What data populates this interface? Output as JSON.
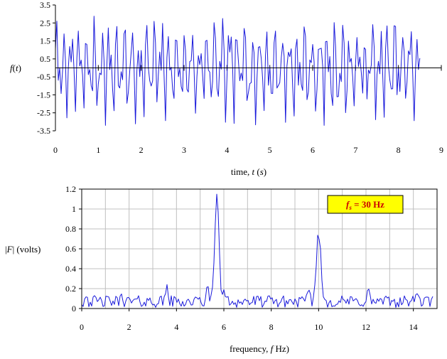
{
  "colors": {
    "series": "#1a1adb",
    "frame": "#000000",
    "grid": "#c0c0c0",
    "annotation_bg": "#ffff00",
    "annotation_text": "#cc0000"
  },
  "chart_data": [
    {
      "type": "line",
      "xlabel": "time, t (s)",
      "ylabel": "f(t)",
      "xlim": [
        0,
        9
      ],
      "ylim": [
        -3.5,
        3.5
      ],
      "xticks": [
        "0",
        "1",
        "2",
        "3",
        "4",
        "5",
        "6",
        "7",
        "8",
        "9"
      ],
      "yticks": [
        "3.5",
        "2.5",
        "1.5",
        "0.5",
        "-0.5",
        "-1.5",
        "-2.5",
        "-3.5"
      ],
      "grid": false,
      "sampling_rate_hz": 30,
      "x_end": 8.5,
      "series": [
        {
          "components": [
            {
              "amplitude": 1.5,
              "frequency_hz": 5.7
            },
            {
              "amplitude": 1.1,
              "frequency_hz": 10
            }
          ],
          "noise": "random",
          "y_range": [
            -3.2,
            3.3
          ]
        }
      ]
    },
    {
      "type": "line",
      "xlabel": "frequency, f Hz)",
      "ylabel": "|F| (volts)",
      "xlim": [
        0,
        15
      ],
      "ylim": [
        0,
        1.2
      ],
      "xticks": [
        "0",
        "2",
        "4",
        "6",
        "8",
        "10",
        "12",
        "14"
      ],
      "yticks": [
        "1.2",
        "1",
        "0.8",
        "0.6",
        "0.4",
        "0.2",
        "0"
      ],
      "grid": true,
      "annotation": {
        "text": "fs = 30 Hz",
        "symbol": "f",
        "subscript": "s",
        "rest": " = 30  Hz",
        "placement": "top-right"
      },
      "series": [
        {
          "peaks": [
            {
              "f": 5.7,
              "value": 1.1
            },
            {
              "f": 10.0,
              "value": 0.76
            },
            {
              "f": 3.6,
              "value": 0.25
            },
            {
              "f": 5.3,
              "value": 0.2
            },
            {
              "f": 6.0,
              "value": 0.2
            },
            {
              "f": 12.1,
              "value": 0.18
            },
            {
              "f": 14.1,
              "value": 0.17
            },
            {
              "f": 0.2,
              "value": 0.15
            },
            {
              "f": 1.7,
              "value": 0.15
            },
            {
              "f": 9.6,
              "value": 0.16
            }
          ],
          "baseline_range": [
            0.01,
            0.16
          ]
        }
      ]
    }
  ]
}
